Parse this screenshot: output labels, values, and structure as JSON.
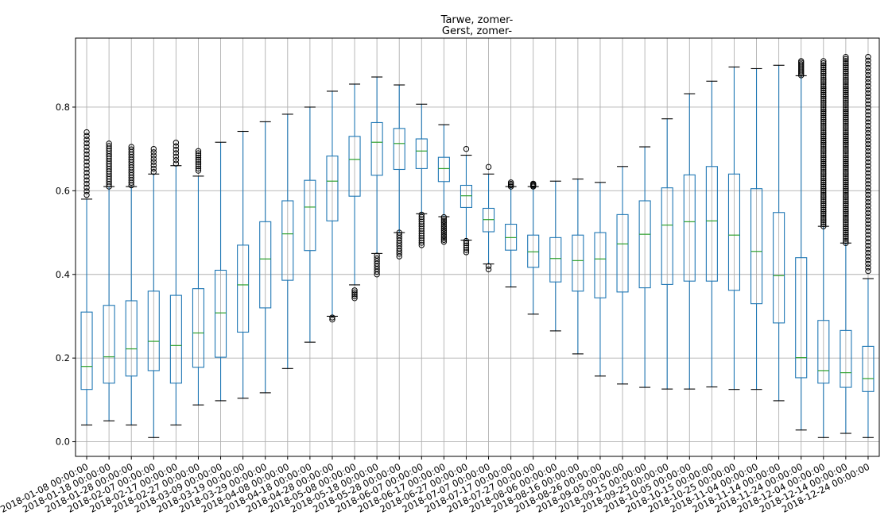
{
  "chart_data": {
    "type": "boxplot",
    "title": [
      "Tarwe, zomer-",
      "Gerst, zomer-"
    ],
    "xlabel": "",
    "ylabel": "",
    "ylim": [
      -0.035,
      0.965
    ],
    "yticks": [
      0.0,
      0.2,
      0.4,
      0.6,
      0.8
    ],
    "ytick_labels": [
      "0.0",
      "0.2",
      "0.4",
      "0.6",
      "0.8"
    ],
    "grid": true,
    "categories": [
      "2018-01-08 00:00:00",
      "2018-01-18 00:00:00",
      "2018-01-28 00:00:00",
      "2018-02-07 00:00:00",
      "2018-02-17 00:00:00",
      "2018-02-27 00:00:00",
      "2018-03-09 00:00:00",
      "2018-03-19 00:00:00",
      "2018-03-29 00:00:00",
      "2018-04-08 00:00:00",
      "2018-04-18 00:00:00",
      "2018-04-28 00:00:00",
      "2018-05-08 00:00:00",
      "2018-05-18 00:00:00",
      "2018-05-28 00:00:00",
      "2018-06-07 00:00:00",
      "2018-06-17 00:00:00",
      "2018-06-27 00:00:00",
      "2018-07-07 00:00:00",
      "2018-07-17 00:00:00",
      "2018-07-27 00:00:00",
      "2018-08-06 00:00:00",
      "2018-08-16 00:00:00",
      "2018-08-26 00:00:00",
      "2018-09-05 00:00:00",
      "2018-09-15 00:00:00",
      "2018-09-25 00:00:00",
      "2018-10-05 00:00:00",
      "2018-10-15 00:00:00",
      "2018-10-25 00:00:00",
      "2018-11-04 00:00:00",
      "2018-11-14 00:00:00",
      "2018-11-24 00:00:00",
      "2018-12-04 00:00:00",
      "2018-12-14 00:00:00",
      "2018-12-24 00:00:00"
    ],
    "boxes": [
      {
        "whislo": 0.04,
        "q1": 0.125,
        "med": 0.18,
        "q3": 0.31,
        "whishi": 0.58,
        "fliers": [
          [
            0.59,
            0.74,
            18
          ]
        ]
      },
      {
        "whislo": 0.05,
        "q1": 0.14,
        "med": 0.203,
        "q3": 0.326,
        "whishi": 0.61,
        "fliers": [
          [
            0.61,
            0.713,
            18
          ]
        ]
      },
      {
        "whislo": 0.04,
        "q1": 0.157,
        "med": 0.222,
        "q3": 0.337,
        "whishi": 0.61,
        "fliers": [
          [
            0.613,
            0.705,
            16
          ]
        ]
      },
      {
        "whislo": 0.01,
        "q1": 0.17,
        "med": 0.24,
        "q3": 0.36,
        "whishi": 0.64,
        "fliers": [
          [
            0.645,
            0.7,
            8
          ]
        ]
      },
      {
        "whislo": 0.04,
        "q1": 0.14,
        "med": 0.23,
        "q3": 0.35,
        "whishi": 0.66,
        "fliers": [
          [
            0.665,
            0.715,
            7
          ]
        ]
      },
      {
        "whislo": 0.088,
        "q1": 0.178,
        "med": 0.26,
        "q3": 0.366,
        "whishi": 0.635,
        "fliers": [
          [
            0.648,
            0.695,
            10
          ]
        ]
      },
      {
        "whislo": 0.098,
        "q1": 0.202,
        "med": 0.308,
        "q3": 0.41,
        "whishi": 0.716,
        "fliers": []
      },
      {
        "whislo": 0.104,
        "q1": 0.262,
        "med": 0.375,
        "q3": 0.47,
        "whishi": 0.742,
        "fliers": []
      },
      {
        "whislo": 0.117,
        "q1": 0.32,
        "med": 0.437,
        "q3": 0.526,
        "whishi": 0.765,
        "fliers": []
      },
      {
        "whislo": 0.175,
        "q1": 0.386,
        "med": 0.497,
        "q3": 0.576,
        "whishi": 0.783,
        "fliers": []
      },
      {
        "whislo": 0.238,
        "q1": 0.457,
        "med": 0.561,
        "q3": 0.625,
        "whishi": 0.8,
        "fliers": []
      },
      {
        "whislo": 0.3,
        "q1": 0.528,
        "med": 0.623,
        "q3": 0.683,
        "whishi": 0.838,
        "fliers": [
          [
            0.292,
            0.297,
            2
          ]
        ]
      },
      {
        "whislo": 0.375,
        "q1": 0.587,
        "med": 0.675,
        "q3": 0.73,
        "whishi": 0.855,
        "fliers": [
          [
            0.343,
            0.362,
            5
          ]
        ]
      },
      {
        "whislo": 0.45,
        "q1": 0.637,
        "med": 0.716,
        "q3": 0.763,
        "whishi": 0.872,
        "fliers": [
          [
            0.4,
            0.445,
            8
          ]
        ]
      },
      {
        "whislo": 0.5,
        "q1": 0.651,
        "med": 0.713,
        "q3": 0.749,
        "whishi": 0.853,
        "fliers": [
          [
            0.443,
            0.5,
            10
          ]
        ]
      },
      {
        "whislo": 0.545,
        "q1": 0.653,
        "med": 0.695,
        "q3": 0.724,
        "whishi": 0.807,
        "fliers": [
          [
            0.47,
            0.543,
            14
          ]
        ]
      },
      {
        "whislo": 0.538,
        "q1": 0.622,
        "med": 0.653,
        "q3": 0.68,
        "whishi": 0.758,
        "fliers": [
          [
            0.478,
            0.537,
            14
          ]
        ]
      },
      {
        "whislo": 0.482,
        "q1": 0.56,
        "med": 0.588,
        "q3": 0.613,
        "whishi": 0.685,
        "fliers": [
          [
            0.453,
            0.48,
            6
          ],
          [
            0.7,
            0.7,
            1
          ]
        ]
      },
      {
        "whislo": 0.425,
        "q1": 0.502,
        "med": 0.531,
        "q3": 0.558,
        "whishi": 0.64,
        "fliers": [
          [
            0.412,
            0.42,
            2
          ],
          [
            0.657,
            0.657,
            1
          ]
        ]
      },
      {
        "whislo": 0.37,
        "q1": 0.458,
        "med": 0.488,
        "q3": 0.52,
        "whishi": 0.61,
        "fliers": [
          [
            0.61,
            0.62,
            4
          ]
        ]
      },
      {
        "whislo": 0.305,
        "q1": 0.417,
        "med": 0.454,
        "q3": 0.494,
        "whishi": 0.61,
        "fliers": [
          [
            0.61,
            0.617,
            4
          ]
        ]
      },
      {
        "whislo": 0.265,
        "q1": 0.382,
        "med": 0.438,
        "q3": 0.488,
        "whishi": 0.623,
        "fliers": []
      },
      {
        "whislo": 0.21,
        "q1": 0.36,
        "med": 0.433,
        "q3": 0.494,
        "whishi": 0.628,
        "fliers": []
      },
      {
        "whislo": 0.157,
        "q1": 0.344,
        "med": 0.437,
        "q3": 0.5,
        "whishi": 0.62,
        "fliers": []
      },
      {
        "whislo": 0.138,
        "q1": 0.358,
        "med": 0.473,
        "q3": 0.543,
        "whishi": 0.658,
        "fliers": []
      },
      {
        "whislo": 0.13,
        "q1": 0.368,
        "med": 0.496,
        "q3": 0.576,
        "whishi": 0.705,
        "fliers": []
      },
      {
        "whislo": 0.126,
        "q1": 0.376,
        "med": 0.518,
        "q3": 0.607,
        "whishi": 0.772,
        "fliers": []
      },
      {
        "whislo": 0.126,
        "q1": 0.384,
        "med": 0.526,
        "q3": 0.638,
        "whishi": 0.832,
        "fliers": []
      },
      {
        "whislo": 0.131,
        "q1": 0.384,
        "med": 0.528,
        "q3": 0.658,
        "whishi": 0.862,
        "fliers": []
      },
      {
        "whislo": 0.125,
        "q1": 0.362,
        "med": 0.494,
        "q3": 0.64,
        "whishi": 0.896,
        "fliers": []
      },
      {
        "whislo": 0.125,
        "q1": 0.33,
        "med": 0.455,
        "q3": 0.605,
        "whishi": 0.892,
        "fliers": []
      },
      {
        "whislo": 0.098,
        "q1": 0.284,
        "med": 0.397,
        "q3": 0.548,
        "whishi": 0.9,
        "fliers": []
      },
      {
        "whislo": 0.028,
        "q1": 0.153,
        "med": 0.201,
        "q3": 0.44,
        "whishi": 0.875,
        "fliers": [
          [
            0.876,
            0.91,
            10
          ]
        ]
      },
      {
        "whislo": 0.01,
        "q1": 0.14,
        "med": 0.17,
        "q3": 0.29,
        "whishi": 0.515,
        "fliers": [
          [
            0.515,
            0.91,
            80
          ]
        ]
      },
      {
        "whislo": 0.02,
        "q1": 0.13,
        "med": 0.165,
        "q3": 0.266,
        "whishi": 0.475,
        "fliers": [
          [
            0.475,
            0.92,
            90
          ]
        ]
      },
      {
        "whislo": 0.01,
        "q1": 0.12,
        "med": 0.151,
        "q3": 0.228,
        "whishi": 0.39,
        "fliers": [
          [
            0.408,
            0.92,
            60
          ]
        ]
      }
    ]
  }
}
